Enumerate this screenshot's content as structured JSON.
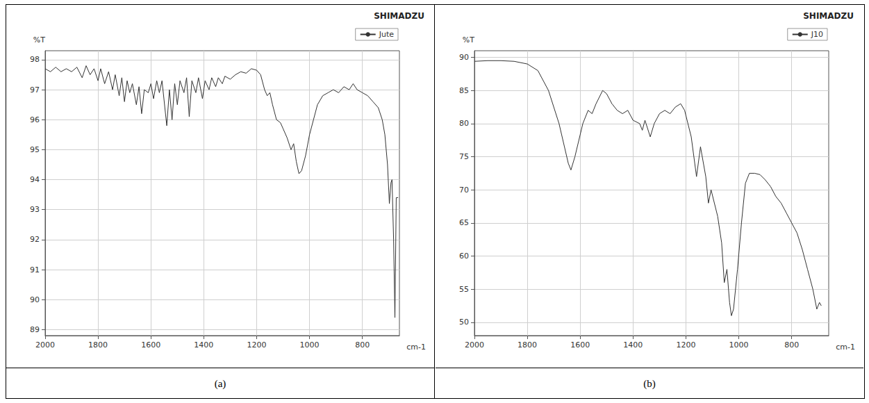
{
  "chart_data": [
    {
      "type": "line",
      "annotations": [
        "SHIMADZU"
      ],
      "caption": "(a)",
      "y_label": "%T",
      "x_label": "cm-1",
      "legend": "upper right",
      "grid": true,
      "xlim": [
        2000,
        660
      ],
      "xticks": [
        2000,
        1800,
        1600,
        1400,
        1200,
        1000,
        800
      ],
      "ylim": [
        88.8,
        98.3
      ],
      "yticks": [
        89,
        90,
        91,
        92,
        93,
        94,
        95,
        96,
        97,
        98
      ],
      "x": [
        2000,
        1980,
        1960,
        1940,
        1920,
        1900,
        1880,
        1860,
        1845,
        1830,
        1815,
        1800,
        1790,
        1775,
        1760,
        1745,
        1735,
        1720,
        1710,
        1700,
        1690,
        1680,
        1670,
        1655,
        1645,
        1635,
        1625,
        1610,
        1600,
        1590,
        1578,
        1568,
        1558,
        1540,
        1530,
        1520,
        1510,
        1500,
        1490,
        1475,
        1465,
        1455,
        1445,
        1430,
        1420,
        1405,
        1395,
        1380,
        1370,
        1355,
        1345,
        1330,
        1320,
        1300,
        1280,
        1260,
        1240,
        1220,
        1200,
        1185,
        1170,
        1160,
        1150,
        1140,
        1125,
        1110,
        1100,
        1085,
        1070,
        1060,
        1050,
        1040,
        1030,
        1015,
        1000,
        985,
        970,
        950,
        930,
        910,
        890,
        870,
        850,
        835,
        820,
        800,
        780,
        760,
        740,
        725,
        715,
        705,
        698,
        692,
        688,
        682,
        677,
        672,
        665
      ],
      "series": [
        {
          "name": "Jute",
          "color": "#333333",
          "values": [
            97.7,
            97.6,
            97.75,
            97.6,
            97.7,
            97.6,
            97.75,
            97.4,
            97.8,
            97.5,
            97.7,
            97.3,
            97.7,
            97.2,
            97.6,
            97.0,
            97.5,
            96.8,
            97.4,
            96.6,
            97.3,
            96.9,
            97.2,
            96.5,
            97.1,
            96.2,
            97.0,
            96.9,
            97.2,
            96.7,
            97.3,
            96.9,
            97.3,
            95.8,
            97.0,
            96.0,
            97.2,
            96.5,
            97.3,
            96.9,
            97.4,
            96.1,
            97.3,
            96.9,
            97.4,
            96.7,
            97.3,
            97.0,
            97.4,
            97.1,
            97.4,
            97.2,
            97.45,
            97.35,
            97.5,
            97.6,
            97.55,
            97.7,
            97.65,
            97.5,
            97.0,
            96.8,
            96.9,
            96.5,
            96.0,
            95.9,
            95.7,
            95.4,
            95.0,
            95.2,
            94.6,
            94.2,
            94.3,
            94.8,
            95.5,
            96.0,
            96.5,
            96.8,
            96.9,
            97.0,
            96.9,
            97.1,
            97.0,
            97.2,
            97.0,
            96.9,
            96.8,
            96.6,
            96.4,
            96.0,
            95.5,
            94.5,
            93.2,
            93.9,
            94.0,
            92.0,
            89.4,
            93.4,
            93.4
          ]
        }
      ]
    },
    {
      "type": "line",
      "annotations": [
        "SHIMADZU"
      ],
      "caption": "(b)",
      "y_label": "%T",
      "x_label": "cm-1",
      "legend": "upper right",
      "grid": true,
      "xlim": [
        2000,
        660
      ],
      "xticks": [
        2000,
        1800,
        1600,
        1400,
        1200,
        1000,
        800
      ],
      "ylim": [
        48,
        91
      ],
      "yticks": [
        50,
        55,
        60,
        65,
        70,
        75,
        80,
        85,
        90
      ],
      "x": [
        2000,
        1950,
        1900,
        1850,
        1800,
        1760,
        1720,
        1680,
        1645,
        1635,
        1620,
        1590,
        1570,
        1555,
        1540,
        1515,
        1500,
        1480,
        1460,
        1440,
        1420,
        1400,
        1375,
        1365,
        1355,
        1335,
        1320,
        1300,
        1280,
        1260,
        1240,
        1220,
        1205,
        1180,
        1160,
        1145,
        1125,
        1115,
        1105,
        1080,
        1065,
        1055,
        1045,
        1035,
        1028,
        1020,
        1005,
        990,
        975,
        960,
        940,
        920,
        900,
        880,
        860,
        840,
        820,
        800,
        780,
        760,
        740,
        720,
        705,
        695,
        688
      ],
      "series": [
        {
          "name": "J10",
          "color": "#333333",
          "values": [
            89.4,
            89.5,
            89.5,
            89.4,
            89.0,
            88.0,
            85.0,
            80.0,
            74.0,
            73.0,
            75.0,
            80.0,
            82.0,
            81.5,
            83.0,
            85.0,
            84.5,
            83.0,
            82.0,
            81.5,
            82.0,
            80.5,
            80.0,
            79.0,
            80.5,
            78.0,
            80.0,
            81.5,
            82.0,
            81.5,
            82.5,
            83.0,
            82.0,
            78.0,
            72.0,
            76.5,
            72.0,
            68.0,
            70.0,
            66.0,
            62.0,
            56.0,
            58.0,
            53.0,
            51.0,
            52.0,
            58.0,
            65.0,
            71.0,
            72.5,
            72.5,
            72.3,
            71.5,
            70.5,
            69.0,
            68.0,
            66.5,
            65.0,
            63.5,
            61.0,
            58.0,
            55.0,
            52.0,
            53.0,
            52.5
          ]
        }
      ]
    }
  ]
}
